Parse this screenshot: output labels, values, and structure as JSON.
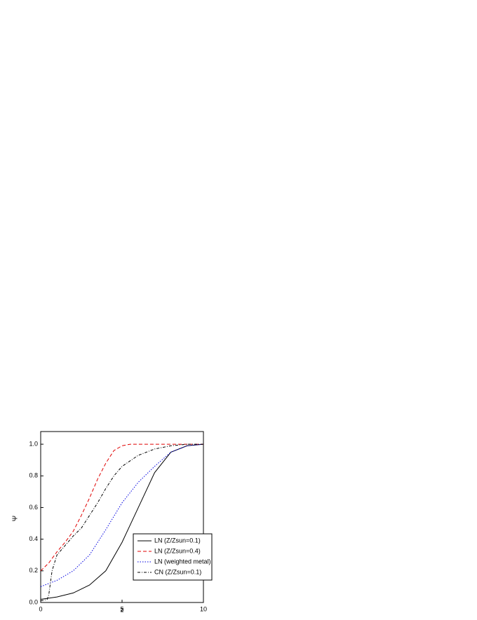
{
  "chart_data": {
    "type": "line",
    "x_label": "z",
    "y_label": "Ψ",
    "xlim": [
      0,
      10
    ],
    "ylim": [
      0,
      1.08
    ],
    "xticks": [
      0,
      5,
      10
    ],
    "yticks": [
      {
        "value": 0,
        "label": "0.0"
      },
      {
        "value": 0.2,
        "label": "0.2"
      },
      {
        "value": 0.4,
        "label": "0.4"
      },
      {
        "value": 0.6,
        "label": "0.6"
      },
      {
        "value": 0.8,
        "label": "0.8"
      },
      {
        "value": 1,
        "label": "1.0"
      }
    ],
    "legend": "lower right",
    "series": [
      {
        "name": "LN (Z/Zsun=0.1)",
        "color": "#000000",
        "dash": "none",
        "x": [
          0,
          1,
          2,
          3,
          4,
          5,
          6,
          7,
          8,
          9,
          10
        ],
        "values": [
          0.02,
          0.035,
          0.06,
          0.11,
          0.2,
          0.38,
          0.6,
          0.82,
          0.95,
          0.99,
          1.0
        ]
      },
      {
        "name": "LN (Z/Zsun=0.4)",
        "color": "#e00000",
        "dash": "5,3",
        "x": [
          0,
          0.5,
          1,
          1.5,
          2,
          2.5,
          3,
          3.5,
          4,
          4.5,
          5,
          5.5,
          6,
          7,
          8,
          9,
          10
        ],
        "values": [
          0.2,
          0.25,
          0.32,
          0.38,
          0.45,
          0.55,
          0.66,
          0.78,
          0.88,
          0.96,
          0.99,
          1.0,
          1.0,
          1.0,
          1.0,
          1.0,
          1.0
        ]
      },
      {
        "name": "LN (weighted metal)",
        "color": "#0000e0",
        "dash": "1.5,2",
        "x": [
          0,
          1,
          2,
          3,
          4,
          5,
          6,
          7,
          8,
          9,
          10
        ],
        "values": [
          0.1,
          0.14,
          0.2,
          0.3,
          0.46,
          0.63,
          0.76,
          0.86,
          0.95,
          0.99,
          1.0
        ]
      },
      {
        "name": "CN (Z/Zsun=0.1)",
        "color": "#000000",
        "dash": "4,2,1,2",
        "x": [
          0,
          0.4,
          0.5,
          0.7,
          1,
          1.5,
          2,
          2.5,
          3,
          3.5,
          4,
          4.5,
          5,
          6,
          7,
          8,
          9,
          10
        ],
        "values": [
          0.01,
          0.02,
          0.05,
          0.2,
          0.3,
          0.36,
          0.42,
          0.47,
          0.55,
          0.63,
          0.72,
          0.8,
          0.86,
          0.93,
          0.97,
          0.99,
          1.0,
          1.0
        ]
      }
    ]
  }
}
